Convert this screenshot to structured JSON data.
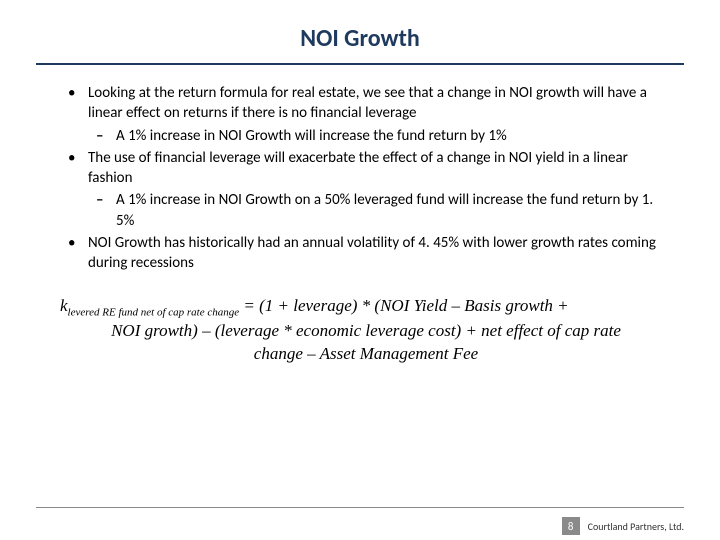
{
  "title": "NOI Growth",
  "bullets": [
    {
      "text": "Looking at the return formula for real estate, we see that a change in NOI growth will have a linear effect on returns if there is no financial leverage",
      "sub": [
        "A 1% increase in NOI Growth will increase the fund return by 1%"
      ]
    },
    {
      "text": "The use of financial leverage will exacerbate the effect of a change in NOI yield in a linear fashion",
      "sub": [
        "A 1% increase in NOI Growth on a 50% leveraged fund will increase the fund return by 1. 5%"
      ]
    },
    {
      "text": "NOI Growth has historically had an annual volatility of 4. 45% with lower growth rates coming during recessions",
      "sub": []
    }
  ],
  "formula": {
    "variable": "k",
    "subscript": "levered RE fund net of cap rate change",
    "rhs_line1": " = (1 + leverage) * (NOI Yield – Basis growth +",
    "line2": "NOI growth) – (leverage * economic leverage cost) + net effect of cap rate",
    "line3": "change – Asset Management Fee"
  },
  "footer": {
    "page": "8",
    "company": "Courtland Partners, Ltd."
  },
  "colors": {
    "title": "#1f3a5f",
    "rule": "#1f3a5f",
    "footer_rule": "#8a8a8a",
    "pagenum_bg": "#8a8a8a"
  }
}
